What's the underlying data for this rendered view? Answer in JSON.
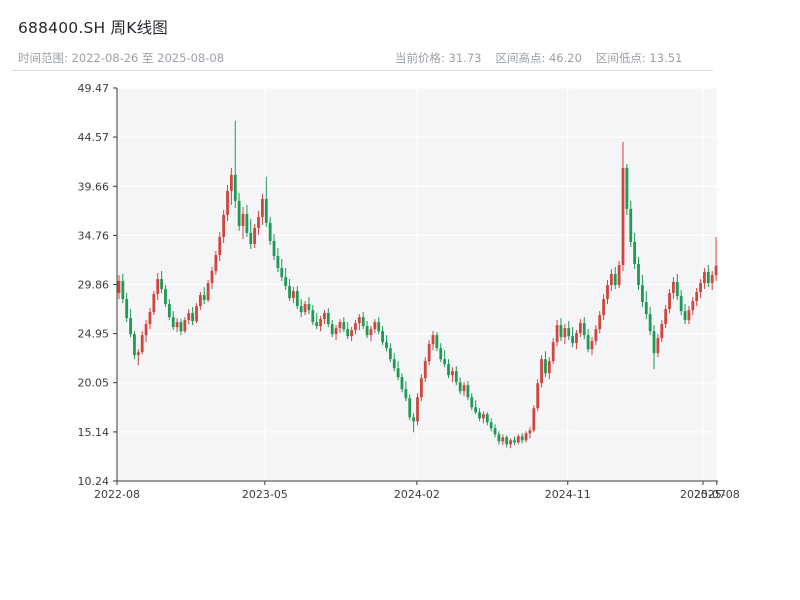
{
  "header": {
    "title": "688400.SH 周K线图",
    "time_range": "时间范围: 2022-08-26 至 2025-08-08",
    "stats": [
      "当前价格: 31.73",
      "区间高点: 46.20",
      "区间低点: 13.51"
    ]
  },
  "chart_data": {
    "type": "candlestick",
    "symbol": "688400.SH",
    "interval": "weekly",
    "title": "688400.SH 周K线图",
    "start_date": "2022-08-26",
    "end_date": "2025-08-08",
    "current_price": 31.73,
    "range_high": 46.2,
    "range_low": 13.51,
    "ylim": [
      10.24,
      49.47
    ],
    "y_ticks": [
      49.47,
      44.57,
      39.66,
      34.76,
      29.86,
      24.95,
      20.05,
      15.14,
      10.24
    ],
    "x_ticks": [
      {
        "label": "2022-08",
        "pos": 0.0
      },
      {
        "label": "2023-05",
        "pos": 0.246
      },
      {
        "label": "2024-02",
        "pos": 0.499
      },
      {
        "label": "2024-11",
        "pos": 0.75
      },
      {
        "label": "2025-07",
        "pos": 0.975
      },
      {
        "label": "2025-08",
        "pos": 0.998
      }
    ],
    "up_color": "#d0453e",
    "down_color": "#1d9a53",
    "plot_bg": "#f5f5f7",
    "grid_color": "#ffffff",
    "axis_color": "#3a3a3a",
    "candles": [
      [
        29.0,
        30.8,
        28.4,
        30.2
      ],
      [
        30.2,
        30.9,
        28.0,
        28.4
      ],
      [
        28.4,
        29.0,
        26.1,
        26.5
      ],
      [
        26.5,
        27.4,
        24.6,
        24.9
      ],
      [
        24.9,
        25.2,
        22.4,
        22.8
      ],
      [
        22.8,
        23.4,
        21.8,
        23.1
      ],
      [
        23.1,
        25.2,
        22.9,
        24.8
      ],
      [
        24.8,
        26.3,
        24.1,
        25.9
      ],
      [
        25.9,
        27.5,
        25.4,
        27.1
      ],
      [
        27.1,
        29.2,
        26.8,
        28.9
      ],
      [
        28.9,
        31.0,
        28.3,
        30.4
      ],
      [
        30.4,
        31.2,
        29.0,
        29.4
      ],
      [
        29.4,
        29.8,
        27.6,
        27.9
      ],
      [
        27.9,
        28.4,
        26.3,
        26.6
      ],
      [
        26.6,
        27.2,
        25.3,
        25.6
      ],
      [
        25.6,
        26.5,
        25.1,
        26.1
      ],
      [
        26.1,
        26.4,
        24.8,
        25.2
      ],
      [
        25.2,
        26.6,
        25.0,
        26.3
      ],
      [
        26.3,
        27.4,
        25.9,
        27.0
      ],
      [
        27.0,
        27.6,
        25.8,
        26.2
      ],
      [
        26.2,
        28.0,
        26.0,
        27.7
      ],
      [
        27.7,
        29.1,
        27.3,
        28.8
      ],
      [
        28.8,
        29.6,
        27.9,
        28.3
      ],
      [
        28.3,
        30.3,
        28.1,
        30.0
      ],
      [
        30.0,
        31.6,
        29.4,
        31.2
      ],
      [
        31.2,
        33.2,
        30.8,
        32.8
      ],
      [
        32.8,
        35.1,
        32.2,
        34.6
      ],
      [
        34.6,
        37.3,
        34.0,
        36.8
      ],
      [
        36.8,
        39.8,
        36.2,
        39.2
      ],
      [
        39.2,
        41.5,
        37.8,
        40.8
      ],
      [
        40.8,
        46.2,
        37.5,
        38.2
      ],
      [
        38.2,
        39.0,
        35.2,
        35.7
      ],
      [
        35.7,
        37.6,
        34.4,
        36.9
      ],
      [
        36.9,
        37.8,
        34.6,
        35.0
      ],
      [
        35.0,
        36.4,
        33.4,
        33.9
      ],
      [
        33.9,
        35.9,
        33.5,
        35.5
      ],
      [
        35.5,
        37.2,
        34.8,
        36.6
      ],
      [
        36.6,
        38.9,
        35.8,
        38.4
      ],
      [
        38.4,
        40.6,
        35.6,
        36.0
      ],
      [
        36.0,
        36.6,
        33.8,
        34.2
      ],
      [
        34.2,
        34.9,
        32.3,
        32.7
      ],
      [
        32.7,
        33.5,
        31.1,
        31.5
      ],
      [
        31.5,
        32.4,
        30.2,
        30.6
      ],
      [
        30.6,
        31.5,
        29.3,
        29.7
      ],
      [
        29.7,
        30.4,
        28.2,
        28.5
      ],
      [
        28.5,
        29.6,
        28.0,
        29.2
      ],
      [
        29.2,
        29.7,
        27.4,
        27.7
      ],
      [
        27.7,
        28.4,
        26.6,
        27.1
      ],
      [
        27.1,
        28.2,
        26.8,
        27.9
      ],
      [
        27.9,
        28.6,
        26.9,
        27.3
      ],
      [
        27.3,
        27.8,
        25.8,
        26.1
      ],
      [
        26.1,
        27.0,
        25.4,
        25.7
      ],
      [
        25.7,
        26.7,
        25.2,
        26.4
      ],
      [
        26.4,
        27.3,
        25.9,
        27.0
      ],
      [
        27.0,
        27.5,
        25.6,
        25.9
      ],
      [
        25.9,
        26.3,
        24.6,
        24.9
      ],
      [
        24.9,
        25.8,
        24.3,
        25.5
      ],
      [
        25.5,
        26.4,
        25.0,
        26.1
      ],
      [
        26.1,
        26.6,
        25.1,
        25.4
      ],
      [
        25.4,
        26.1,
        24.4,
        24.7
      ],
      [
        24.7,
        25.6,
        24.2,
        25.3
      ],
      [
        25.3,
        26.3,
        24.9,
        26.0
      ],
      [
        26.0,
        26.9,
        25.3,
        26.6
      ],
      [
        26.6,
        27.1,
        25.4,
        25.7
      ],
      [
        25.7,
        26.2,
        24.5,
        24.8
      ],
      [
        24.8,
        25.7,
        24.2,
        25.4
      ],
      [
        25.4,
        26.4,
        25.0,
        26.1
      ],
      [
        26.1,
        26.6,
        24.9,
        25.2
      ],
      [
        25.2,
        25.7,
        23.8,
        24.1
      ],
      [
        24.1,
        24.8,
        23.2,
        23.5
      ],
      [
        23.5,
        24.0,
        22.1,
        22.4
      ],
      [
        22.4,
        23.0,
        21.2,
        21.5
      ],
      [
        21.5,
        22.2,
        20.3,
        20.6
      ],
      [
        20.6,
        21.0,
        19.1,
        19.4
      ],
      [
        19.4,
        20.2,
        18.2,
        18.5
      ],
      [
        18.5,
        18.9,
        16.3,
        16.6
      ],
      [
        16.6,
        17.0,
        15.1,
        16.2
      ],
      [
        16.2,
        19.0,
        15.8,
        18.6
      ],
      [
        18.6,
        20.9,
        18.2,
        20.5
      ],
      [
        20.5,
        22.6,
        20.1,
        22.2
      ],
      [
        22.2,
        24.3,
        21.8,
        23.9
      ],
      [
        23.9,
        25.2,
        23.3,
        24.8
      ],
      [
        24.8,
        25.1,
        23.2,
        23.5
      ],
      [
        23.5,
        24.0,
        22.1,
        22.4
      ],
      [
        22.4,
        23.3,
        21.6,
        21.9
      ],
      [
        21.9,
        22.4,
        20.5,
        20.8
      ],
      [
        20.8,
        21.6,
        20.1,
        21.2
      ],
      [
        21.2,
        21.7,
        19.8,
        20.1
      ],
      [
        20.1,
        20.6,
        18.9,
        19.2
      ],
      [
        19.2,
        20.1,
        18.7,
        19.8
      ],
      [
        19.8,
        20.2,
        18.3,
        18.6
      ],
      [
        18.6,
        19.0,
        17.3,
        17.6
      ],
      [
        17.6,
        18.3,
        16.9,
        17.1
      ],
      [
        17.1,
        17.5,
        16.2,
        16.5
      ],
      [
        16.5,
        17.2,
        16.0,
        16.9
      ],
      [
        16.9,
        17.1,
        15.8,
        16.1
      ],
      [
        16.1,
        16.5,
        15.2,
        15.5
      ],
      [
        15.5,
        15.9,
        14.6,
        14.9
      ],
      [
        14.9,
        15.2,
        13.9,
        14.2
      ],
      [
        14.2,
        14.9,
        13.8,
        14.6
      ],
      [
        14.6,
        14.8,
        13.6,
        13.9
      ],
      [
        13.9,
        14.5,
        13.51,
        14.3
      ],
      [
        14.3,
        14.7,
        13.8,
        14.1
      ],
      [
        14.1,
        14.9,
        13.9,
        14.7
      ],
      [
        14.7,
        15.0,
        14.0,
        14.3
      ],
      [
        14.3,
        15.2,
        14.1,
        15.0
      ],
      [
        15.0,
        15.6,
        14.5,
        15.3
      ],
      [
        15.3,
        17.8,
        15.1,
        17.5
      ],
      [
        17.5,
        20.4,
        17.2,
        20.0
      ],
      [
        20.0,
        22.8,
        19.6,
        22.4
      ],
      [
        22.4,
        23.2,
        20.6,
        21.0
      ],
      [
        21.0,
        22.6,
        20.4,
        22.2
      ],
      [
        22.2,
        24.5,
        21.9,
        24.1
      ],
      [
        24.1,
        26.3,
        23.7,
        25.8
      ],
      [
        25.8,
        26.5,
        24.2,
        24.6
      ],
      [
        24.6,
        25.9,
        23.9,
        25.5
      ],
      [
        25.5,
        26.2,
        24.3,
        24.7
      ],
      [
        24.7,
        25.6,
        23.6,
        24.0
      ],
      [
        24.0,
        25.3,
        23.4,
        25.0
      ],
      [
        25.0,
        26.4,
        24.6,
        26.0
      ],
      [
        26.0,
        26.6,
        24.4,
        24.8
      ],
      [
        24.8,
        25.4,
        23.1,
        23.4
      ],
      [
        23.4,
        24.6,
        22.8,
        24.2
      ],
      [
        24.2,
        25.8,
        23.8,
        25.4
      ],
      [
        25.4,
        27.2,
        25.0,
        26.8
      ],
      [
        26.8,
        28.9,
        26.3,
        28.4
      ],
      [
        28.4,
        30.3,
        27.9,
        29.8
      ],
      [
        29.8,
        31.4,
        29.2,
        30.9
      ],
      [
        30.9,
        31.6,
        29.4,
        29.8
      ],
      [
        29.8,
        32.2,
        29.5,
        31.8
      ],
      [
        31.8,
        44.1,
        31.2,
        41.5
      ],
      [
        41.5,
        41.9,
        36.8,
        37.4
      ],
      [
        37.4,
        38.2,
        33.6,
        34.1
      ],
      [
        34.1,
        35.0,
        31.4,
        31.9
      ],
      [
        31.9,
        32.6,
        29.3,
        29.8
      ],
      [
        29.8,
        30.8,
        27.6,
        28.1
      ],
      [
        28.1,
        29.2,
        26.4,
        26.9
      ],
      [
        26.9,
        27.6,
        24.8,
        25.2
      ],
      [
        25.2,
        25.8,
        21.4,
        23.0
      ],
      [
        23.0,
        24.9,
        22.6,
        24.5
      ],
      [
        24.5,
        26.3,
        24.1,
        25.9
      ],
      [
        25.9,
        27.8,
        25.5,
        27.4
      ],
      [
        27.4,
        29.4,
        27.0,
        29.0
      ],
      [
        29.0,
        30.6,
        28.4,
        30.1
      ],
      [
        30.1,
        30.9,
        28.3,
        28.7
      ],
      [
        28.7,
        29.3,
        26.8,
        27.2
      ],
      [
        27.2,
        27.9,
        25.9,
        26.3
      ],
      [
        26.3,
        27.7,
        25.9,
        27.3
      ],
      [
        27.3,
        28.6,
        26.8,
        28.2
      ],
      [
        28.2,
        29.5,
        27.7,
        29.1
      ],
      [
        29.1,
        30.4,
        28.5,
        30.0
      ],
      [
        30.0,
        31.5,
        29.4,
        31.1
      ],
      [
        31.1,
        31.8,
        29.6,
        30.0
      ],
      [
        30.0,
        31.2,
        29.3,
        30.8
      ],
      [
        30.8,
        34.6,
        30.2,
        31.73
      ]
    ]
  }
}
